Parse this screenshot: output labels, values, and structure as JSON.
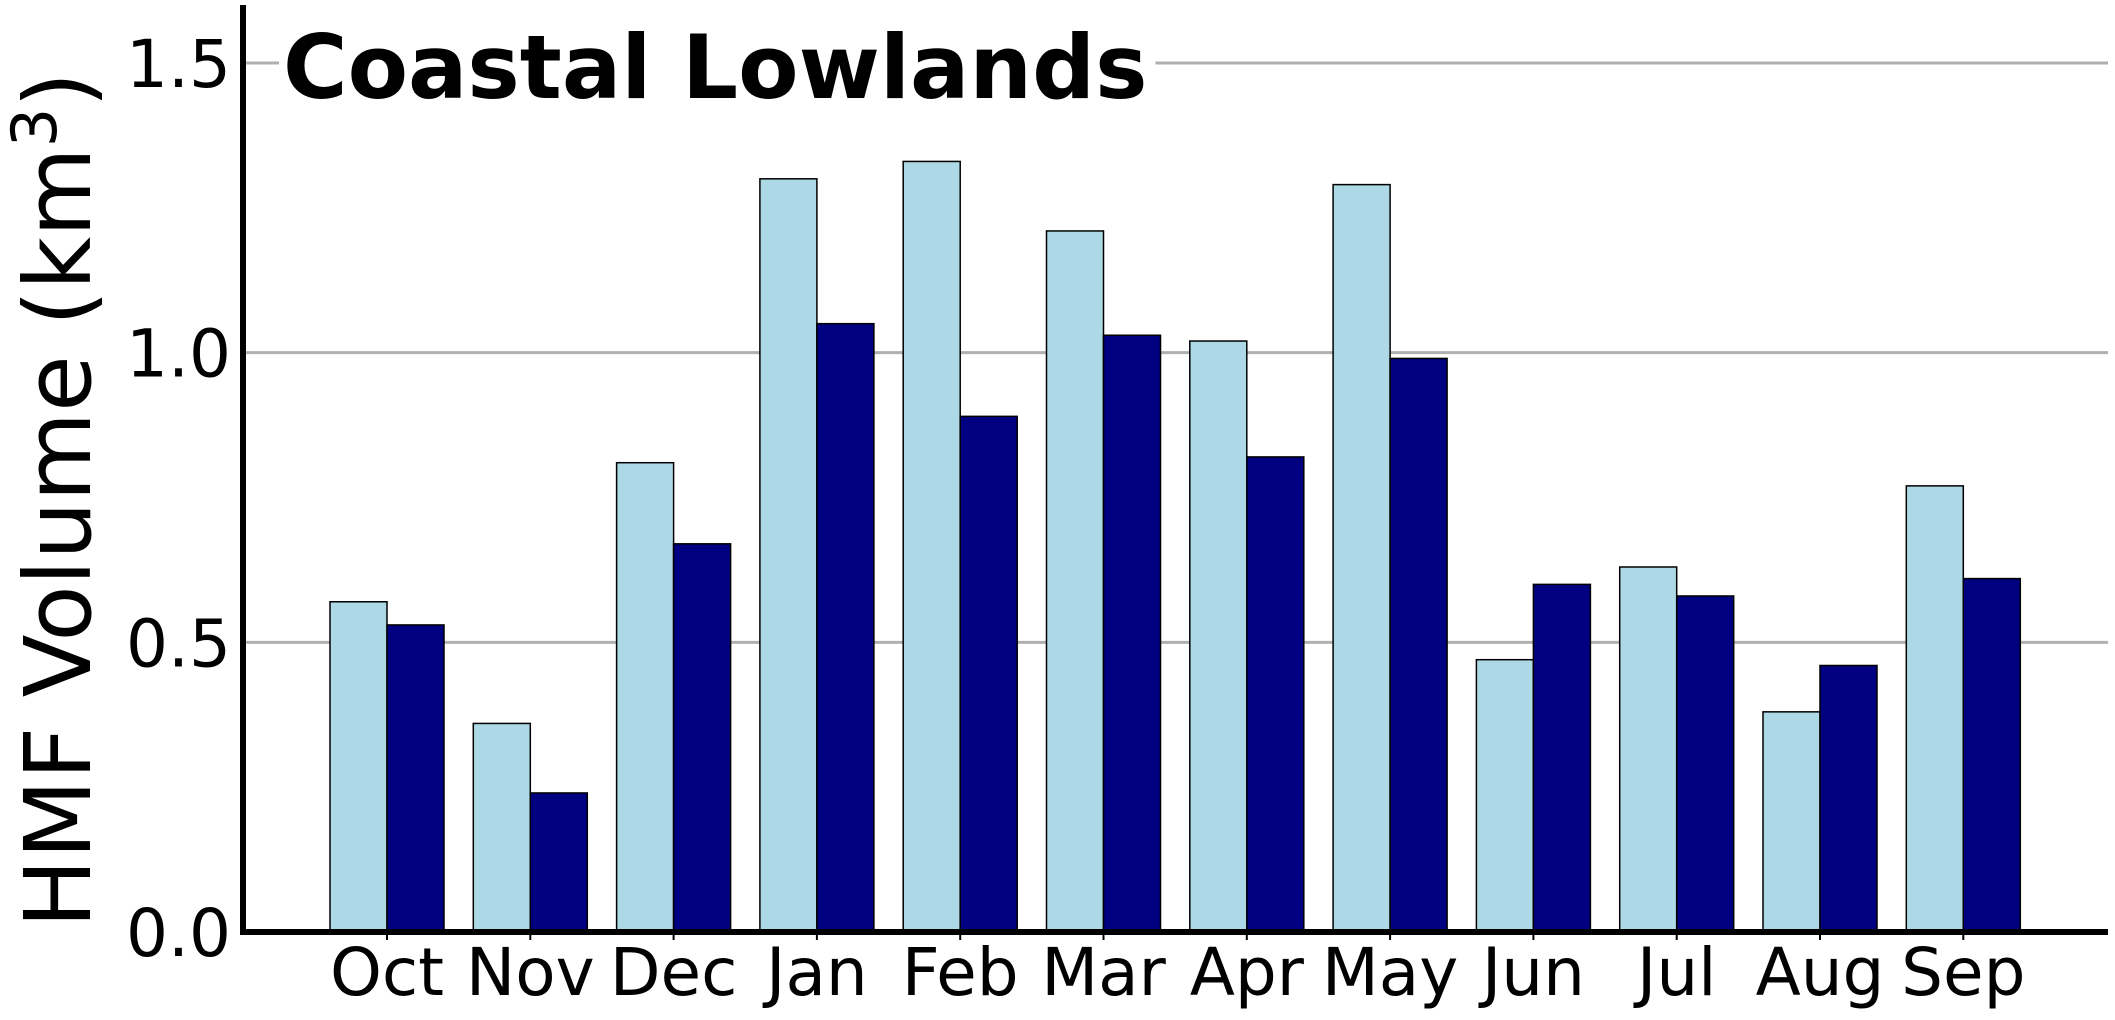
{
  "chart_data": {
    "type": "bar",
    "title": "Coastal Lowlands",
    "ylabel": "HMF Volume (km",
    "ylabel_sup": "3",
    "ylabel_close": ")",
    "xlabel": "",
    "ylim": [
      0,
      1.6
    ],
    "yticks": [
      "0.0",
      "0.5",
      "1.0",
      "1.5"
    ],
    "ytick_values": [
      0,
      0.5,
      1.0,
      1.5
    ],
    "grid": "horizontal",
    "categories": [
      "Oct",
      "Nov",
      "Dec",
      "Jan",
      "Feb",
      "Mar",
      "Apr",
      "May",
      "Jun",
      "Jul",
      "Aug",
      "Sep"
    ],
    "series": [
      {
        "color": "#add8e6",
        "values": [
          0.57,
          0.36,
          0.81,
          1.3,
          1.33,
          1.21,
          1.02,
          1.29,
          0.47,
          0.63,
          0.38,
          0.77
        ]
      },
      {
        "color": "#000080",
        "values": [
          0.53,
          0.24,
          0.67,
          1.05,
          0.89,
          1.03,
          0.82,
          0.99,
          0.6,
          0.58,
          0.46,
          0.61
        ]
      }
    ],
    "grid_color": "#b0b0b0",
    "axis_color": "#000000"
  }
}
